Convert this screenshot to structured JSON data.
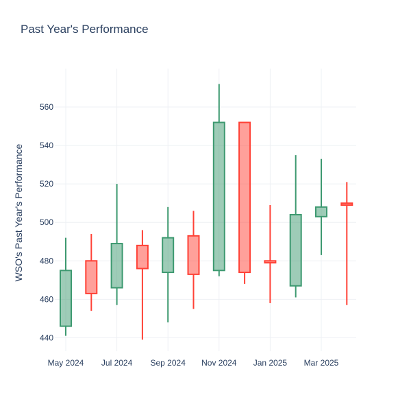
{
  "chart_data": {
    "type": "candlestick",
    "title": "Past Year's Performance",
    "ylabel": "WSO's Past Year's Performance",
    "xlabel": "",
    "ylim": [
      433,
      580
    ],
    "yticks": [
      440,
      460,
      480,
      500,
      520,
      540,
      560
    ],
    "xticks": [
      "May 2024",
      "Jul 2024",
      "Sep 2024",
      "Nov 2024",
      "Jan 2025",
      "Mar 2025"
    ],
    "grid": true,
    "colors": {
      "increasing": "#3d9970",
      "decreasing": "#ff4136",
      "grid": "#eef0f4",
      "text": "#2a3f5f"
    },
    "candles": [
      {
        "period": "2024-05",
        "open": 446,
        "high": 492,
        "low": 441,
        "close": 475
      },
      {
        "period": "2024-06",
        "open": 480,
        "high": 494,
        "low": 454,
        "close": 463
      },
      {
        "period": "2024-07",
        "open": 466,
        "high": 520,
        "low": 457,
        "close": 489
      },
      {
        "period": "2024-08",
        "open": 488,
        "high": 496,
        "low": 439,
        "close": 476
      },
      {
        "period": "2024-09",
        "open": 474,
        "high": 508,
        "low": 448,
        "close": 492
      },
      {
        "period": "2024-10",
        "open": 493,
        "high": 506,
        "low": 455,
        "close": 473
      },
      {
        "period": "2024-11",
        "open": 475,
        "high": 572,
        "low": 472,
        "close": 552
      },
      {
        "period": "2024-12",
        "open": 552,
        "high": 552,
        "low": 468,
        "close": 474
      },
      {
        "period": "2025-01",
        "open": 480,
        "high": 509,
        "low": 458,
        "close": 479
      },
      {
        "period": "2025-02",
        "open": 467,
        "high": 535,
        "low": 461,
        "close": 504
      },
      {
        "period": "2025-03",
        "open": 503,
        "high": 533,
        "low": 483,
        "close": 508
      },
      {
        "period": "2025-04",
        "open": 510,
        "high": 521,
        "low": 457,
        "close": 509
      }
    ]
  }
}
